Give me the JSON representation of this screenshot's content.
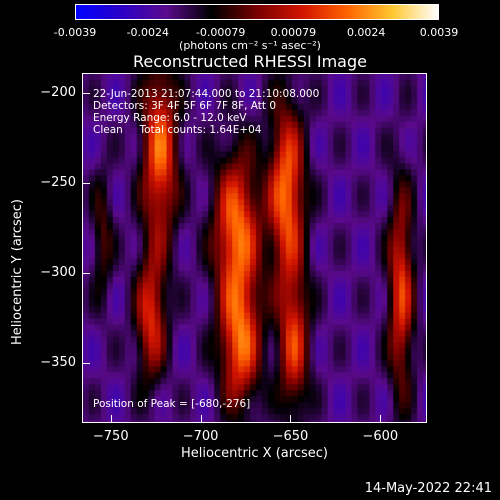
{
  "colorbar": {
    "ticks": [
      "-0.0039",
      "-0.0024",
      "-0.00079",
      "0.00079",
      "0.0024",
      "0.0039"
    ],
    "units": "(photons cm⁻² s⁻¹ asec⁻²)",
    "colors": [
      "#0000ff",
      "#2b00c8",
      "#5a0a8c",
      "#000000",
      "#780000",
      "#d21400",
      "#ff6400",
      "#ffc832",
      "#ffffff"
    ]
  },
  "annotations": {
    "time": "22-Jun-2013 21:07:44.000 to 21:10:08.000",
    "detectors": "Detectors: 3F 4F 5F 6F 7F 8F, Att 0",
    "energy": "Energy Range: 6.0 - 12.0 keV",
    "clean": "Clean     Total counts: 1.64E+04",
    "peak": "Position of Peak = [-680,-276]"
  },
  "footer": {
    "date": "14-May-2022 22:41"
  },
  "chart_data": {
    "type": "heatmap",
    "title": "Reconstructed RHESSI Image",
    "xlabel": "Heliocentric X (arcsec)",
    "ylabel": "Heliocentric Y (arcsec)",
    "xlim": [
      -766,
      -574
    ],
    "ylim": [
      -383,
      -189
    ],
    "xticks": [
      -750,
      -700,
      -650,
      -600
    ],
    "yticks": [
      -200,
      -250,
      -300,
      -350
    ],
    "x_tick_labels": [
      "−750",
      "−700",
      "−650",
      "−600"
    ],
    "y_tick_labels": [
      "−200",
      "−250",
      "−300",
      "−350"
    ],
    "value_range": [
      -0.0039,
      0.0039
    ],
    "peak_position": [
      -680,
      -276
    ],
    "sources": [
      {
        "x": -723,
        "y": -233,
        "sx": 7,
        "sy": 35,
        "amp": 0.0037
      },
      {
        "x": -728,
        "y": -325,
        "sx": 6,
        "sy": 25,
        "amp": 0.003
      },
      {
        "x": -680,
        "y": -276,
        "sx": 9,
        "sy": 30,
        "amp": 0.0039
      },
      {
        "x": -678,
        "y": -340,
        "sx": 8,
        "sy": 25,
        "amp": 0.0036
      },
      {
        "x": -652,
        "y": -255,
        "sx": 7,
        "sy": 35,
        "amp": 0.0039
      },
      {
        "x": -648,
        "y": -340,
        "sx": 6,
        "sy": 28,
        "amp": 0.003
      },
      {
        "x": -588,
        "y": -310,
        "sx": 5,
        "sy": 40,
        "amp": 0.0032
      },
      {
        "x": -755,
        "y": -280,
        "sx": 4,
        "sy": 25,
        "amp": 0.0015
      }
    ]
  }
}
